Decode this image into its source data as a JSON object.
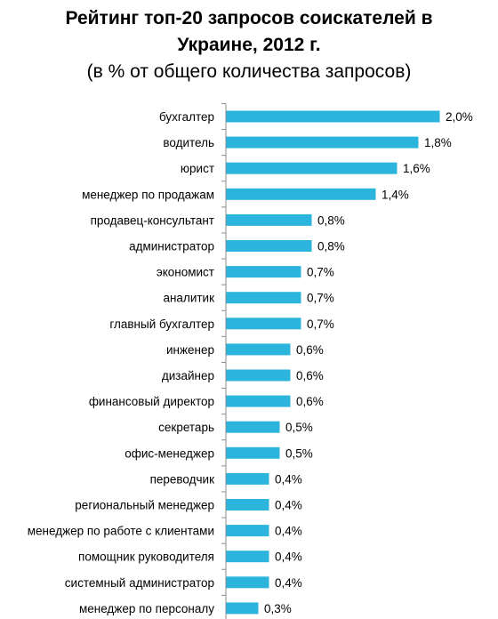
{
  "chart_data": {
    "type": "bar",
    "orientation": "horizontal",
    "title": "Рейтинг топ-20 запросов соискателей в Украине, 2012 г.",
    "title_lines": [
      "Рейтинг топ-20 запросов соискателей в",
      "Украине, 2012 г."
    ],
    "subtitle": "(в % от общего количества запросов)",
    "xlabel": "",
    "ylabel": "",
    "grid": false,
    "legend": "none",
    "bar_color": "#2CB5DC",
    "xlim": [
      0,
      2.0
    ],
    "categories": [
      "бухгалтер",
      "водитель",
      "юрист",
      "менеджер по продажам",
      "продавец-консультант",
      "администратор",
      "экономист",
      "аналитик",
      "главный бухгалтер",
      "инженер",
      "дизайнер",
      "финансовый директор",
      "секретарь",
      "офис-менеджер",
      "переводчик",
      "региональный менеджер",
      "менеджер по работе с клиентами",
      "помощник руководителя",
      "системный администратор",
      "менеджер по персоналу"
    ],
    "values": [
      2.0,
      1.8,
      1.6,
      1.4,
      0.8,
      0.8,
      0.7,
      0.7,
      0.7,
      0.6,
      0.6,
      0.6,
      0.5,
      0.5,
      0.4,
      0.4,
      0.4,
      0.4,
      0.4,
      0.3
    ],
    "data_labels": [
      "2,0%",
      "1,8%",
      "1,6%",
      "1,4%",
      "0,8%",
      "0,8%",
      "0,7%",
      "0,7%",
      "0,7%",
      "0,6%",
      "0,6%",
      "0,6%",
      "0,5%",
      "0,5%",
      "0,4%",
      "0,4%",
      "0,4%",
      "0,4%",
      "0,4%",
      "0,3%"
    ]
  }
}
